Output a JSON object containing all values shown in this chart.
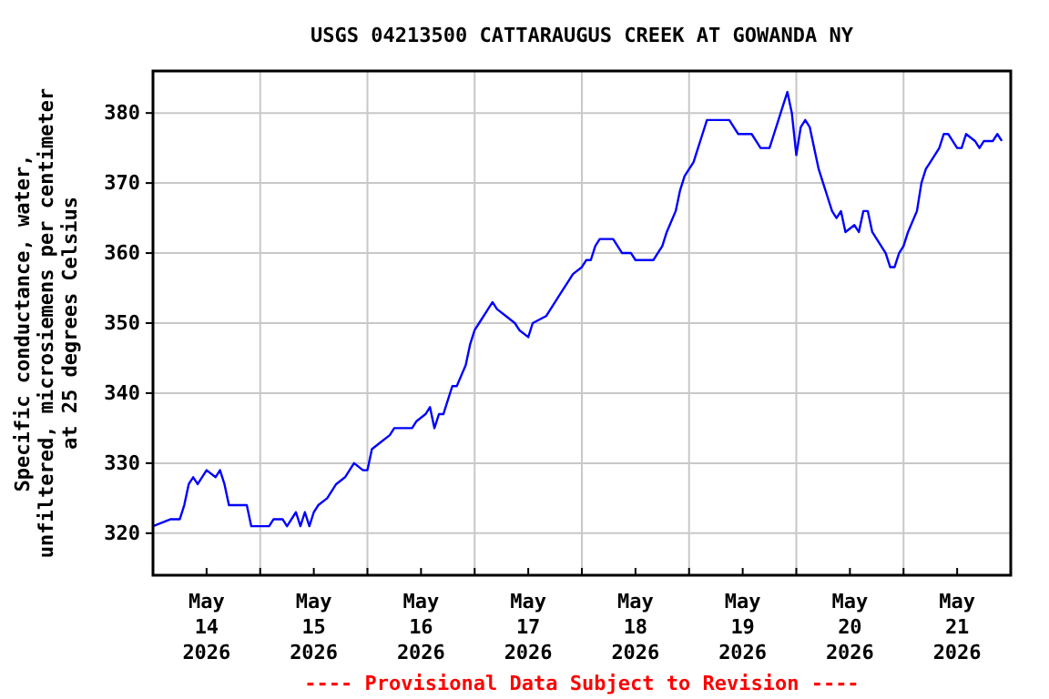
{
  "chart_data": {
    "type": "line",
    "title": "USGS 04213500 CATTARAUGUS CREEK AT GOWANDA NY",
    "ylabel": "Specific conductance, water,\nunfiltered, microsiemens per centimeter\nat 25 degrees Celsius",
    "annotations": [
      "---- Provisional Data Subject to Revision ----"
    ],
    "x": [
      "2026-05-14T00:00",
      "2026-05-14T04:00",
      "2026-05-14T06:00",
      "2026-05-14T07:00",
      "2026-05-14T08:00",
      "2026-05-14T09:00",
      "2026-05-14T10:00",
      "2026-05-14T12:00",
      "2026-05-14T14:00",
      "2026-05-14T15:00",
      "2026-05-14T16:00",
      "2026-05-14T17:00",
      "2026-05-14T21:00",
      "2026-05-14T22:00",
      "2026-05-15T02:00",
      "2026-05-15T03:00",
      "2026-05-15T05:00",
      "2026-05-15T06:00",
      "2026-05-15T08:00",
      "2026-05-15T09:00",
      "2026-05-15T10:00",
      "2026-05-15T11:00",
      "2026-05-15T12:00",
      "2026-05-15T13:00",
      "2026-05-15T15:00",
      "2026-05-15T16:00",
      "2026-05-15T17:00",
      "2026-05-15T19:00",
      "2026-05-15T21:00",
      "2026-05-15T23:00",
      "2026-05-16T00:00",
      "2026-05-16T01:00",
      "2026-05-16T03:00",
      "2026-05-16T05:00",
      "2026-05-16T06:00",
      "2026-05-16T10:00",
      "2026-05-16T11:00",
      "2026-05-16T13:00",
      "2026-05-16T14:00",
      "2026-05-16T15:00",
      "2026-05-16T16:00",
      "2026-05-16T17:00",
      "2026-05-16T18:00",
      "2026-05-16T19:00",
      "2026-05-16T20:00",
      "2026-05-16T22:00",
      "2026-05-16T23:00",
      "2026-05-17T00:00",
      "2026-05-17T01:00",
      "2026-05-17T03:00",
      "2026-05-17T04:00",
      "2026-05-17T05:00",
      "2026-05-17T07:00",
      "2026-05-17T09:00",
      "2026-05-17T10:00",
      "2026-05-17T12:00",
      "2026-05-17T13:00",
      "2026-05-17T16:00",
      "2026-05-17T17:00",
      "2026-05-17T19:00",
      "2026-05-17T21:00",
      "2026-05-17T22:00",
      "2026-05-18T00:00",
      "2026-05-18T01:00",
      "2026-05-18T02:00",
      "2026-05-18T03:00",
      "2026-05-18T04:00",
      "2026-05-18T07:00",
      "2026-05-18T08:00",
      "2026-05-18T09:00",
      "2026-05-18T11:00",
      "2026-05-18T12:00",
      "2026-05-18T16:00",
      "2026-05-18T18:00",
      "2026-05-18T19:00",
      "2026-05-18T21:00",
      "2026-05-18T22:00",
      "2026-05-18T23:00",
      "2026-05-19T01:00",
      "2026-05-19T02:00",
      "2026-05-19T03:00",
      "2026-05-19T04:00",
      "2026-05-19T06:00",
      "2026-05-19T09:00",
      "2026-05-19T10:00",
      "2026-05-19T11:00",
      "2026-05-19T14:00",
      "2026-05-19T15:00",
      "2026-05-19T16:00",
      "2026-05-19T18:00",
      "2026-05-19T19:00",
      "2026-05-19T20:00",
      "2026-05-19T21:00",
      "2026-05-19T22:00",
      "2026-05-19T23:00",
      "2026-05-20T00:00",
      "2026-05-20T01:00",
      "2026-05-20T02:00",
      "2026-05-20T03:00",
      "2026-05-20T04:00",
      "2026-05-20T05:00",
      "2026-05-20T06:00",
      "2026-05-20T07:00",
      "2026-05-20T08:00",
      "2026-05-20T09:00",
      "2026-05-20T10:00",
      "2026-05-20T11:00",
      "2026-05-20T13:00",
      "2026-05-20T14:00",
      "2026-05-20T15:00",
      "2026-05-20T16:00",
      "2026-05-20T17:00",
      "2026-05-20T19:00",
      "2026-05-20T20:00",
      "2026-05-20T21:00",
      "2026-05-20T22:00",
      "2026-05-20T23:00",
      "2026-05-21T00:00",
      "2026-05-21T01:00",
      "2026-05-21T03:00",
      "2026-05-21T04:00",
      "2026-05-21T05:00",
      "2026-05-21T06:00",
      "2026-05-21T07:00",
      "2026-05-21T08:00",
      "2026-05-21T09:00",
      "2026-05-21T10:00",
      "2026-05-21T11:00",
      "2026-05-21T12:00",
      "2026-05-21T13:00",
      "2026-05-21T14:00",
      "2026-05-21T16:00",
      "2026-05-21T17:00",
      "2026-05-21T18:00",
      "2026-05-21T20:00",
      "2026-05-21T21:00",
      "2026-05-21T22:00"
    ],
    "series": [
      {
        "color": "#0000ff",
        "values": [
          321,
          322,
          322,
          324,
          327,
          328,
          327,
          329,
          328,
          329,
          327,
          324,
          324,
          321,
          321,
          322,
          322,
          321,
          323,
          321,
          323,
          321,
          323,
          324,
          325,
          326,
          327,
          328,
          330,
          329,
          329,
          332,
          333,
          334,
          335,
          335,
          336,
          337,
          338,
          335,
          337,
          337,
          339,
          341,
          341,
          344,
          347,
          349,
          350,
          352,
          353,
          352,
          351,
          350,
          349,
          348,
          350,
          351,
          352,
          354,
          356,
          357,
          358,
          359,
          359,
          361,
          362,
          362,
          361,
          360,
          360,
          359,
          359,
          361,
          363,
          366,
          369,
          371,
          373,
          375,
          377,
          379,
          379,
          379,
          378,
          377,
          377,
          376,
          375,
          375,
          377,
          379,
          381,
          383,
          380,
          374,
          378,
          379,
          378,
          375,
          372,
          370,
          368,
          366,
          365,
          366,
          363,
          364,
          363,
          366,
          366,
          363,
          361,
          360,
          358,
          358,
          360,
          361,
          363,
          366,
          370,
          372,
          373,
          374,
          375,
          377,
          377,
          376,
          375,
          375,
          377,
          376,
          375,
          376,
          376,
          377,
          376
        ]
      }
    ],
    "xlim": [
      "2026-05-14T00:00",
      "2026-05-22T00:00"
    ],
    "xticks": [
      {
        "value": "2026-05-14T12:00",
        "label": "May\n14\n2026"
      },
      {
        "value": "2026-05-15T00:00",
        "label": null
      },
      {
        "value": "2026-05-15T12:00",
        "label": "May\n15\n2026"
      },
      {
        "value": "2026-05-16T00:00",
        "label": null
      },
      {
        "value": "2026-05-16T12:00",
        "label": "May\n16\n2026"
      },
      {
        "value": "2026-05-17T00:00",
        "label": null
      },
      {
        "value": "2026-05-17T12:00",
        "label": "May\n17\n2026"
      },
      {
        "value": "2026-05-18T00:00",
        "label": null
      },
      {
        "value": "2026-05-18T12:00",
        "label": "May\n18\n2026"
      },
      {
        "value": "2026-05-19T00:00",
        "label": null
      },
      {
        "value": "2026-05-19T12:00",
        "label": "May\n19\n2026"
      },
      {
        "value": "2026-05-20T00:00",
        "label": null
      },
      {
        "value": "2026-05-20T12:00",
        "label": "May\n20\n2026"
      },
      {
        "value": "2026-05-21T00:00",
        "label": null
      },
      {
        "value": "2026-05-21T12:00",
        "label": "May\n21\n2026"
      }
    ],
    "ylim": [
      314,
      386
    ],
    "yticks": [
      320,
      330,
      340,
      350,
      360,
      370,
      380
    ],
    "grid": true,
    "line_style": "solid"
  }
}
